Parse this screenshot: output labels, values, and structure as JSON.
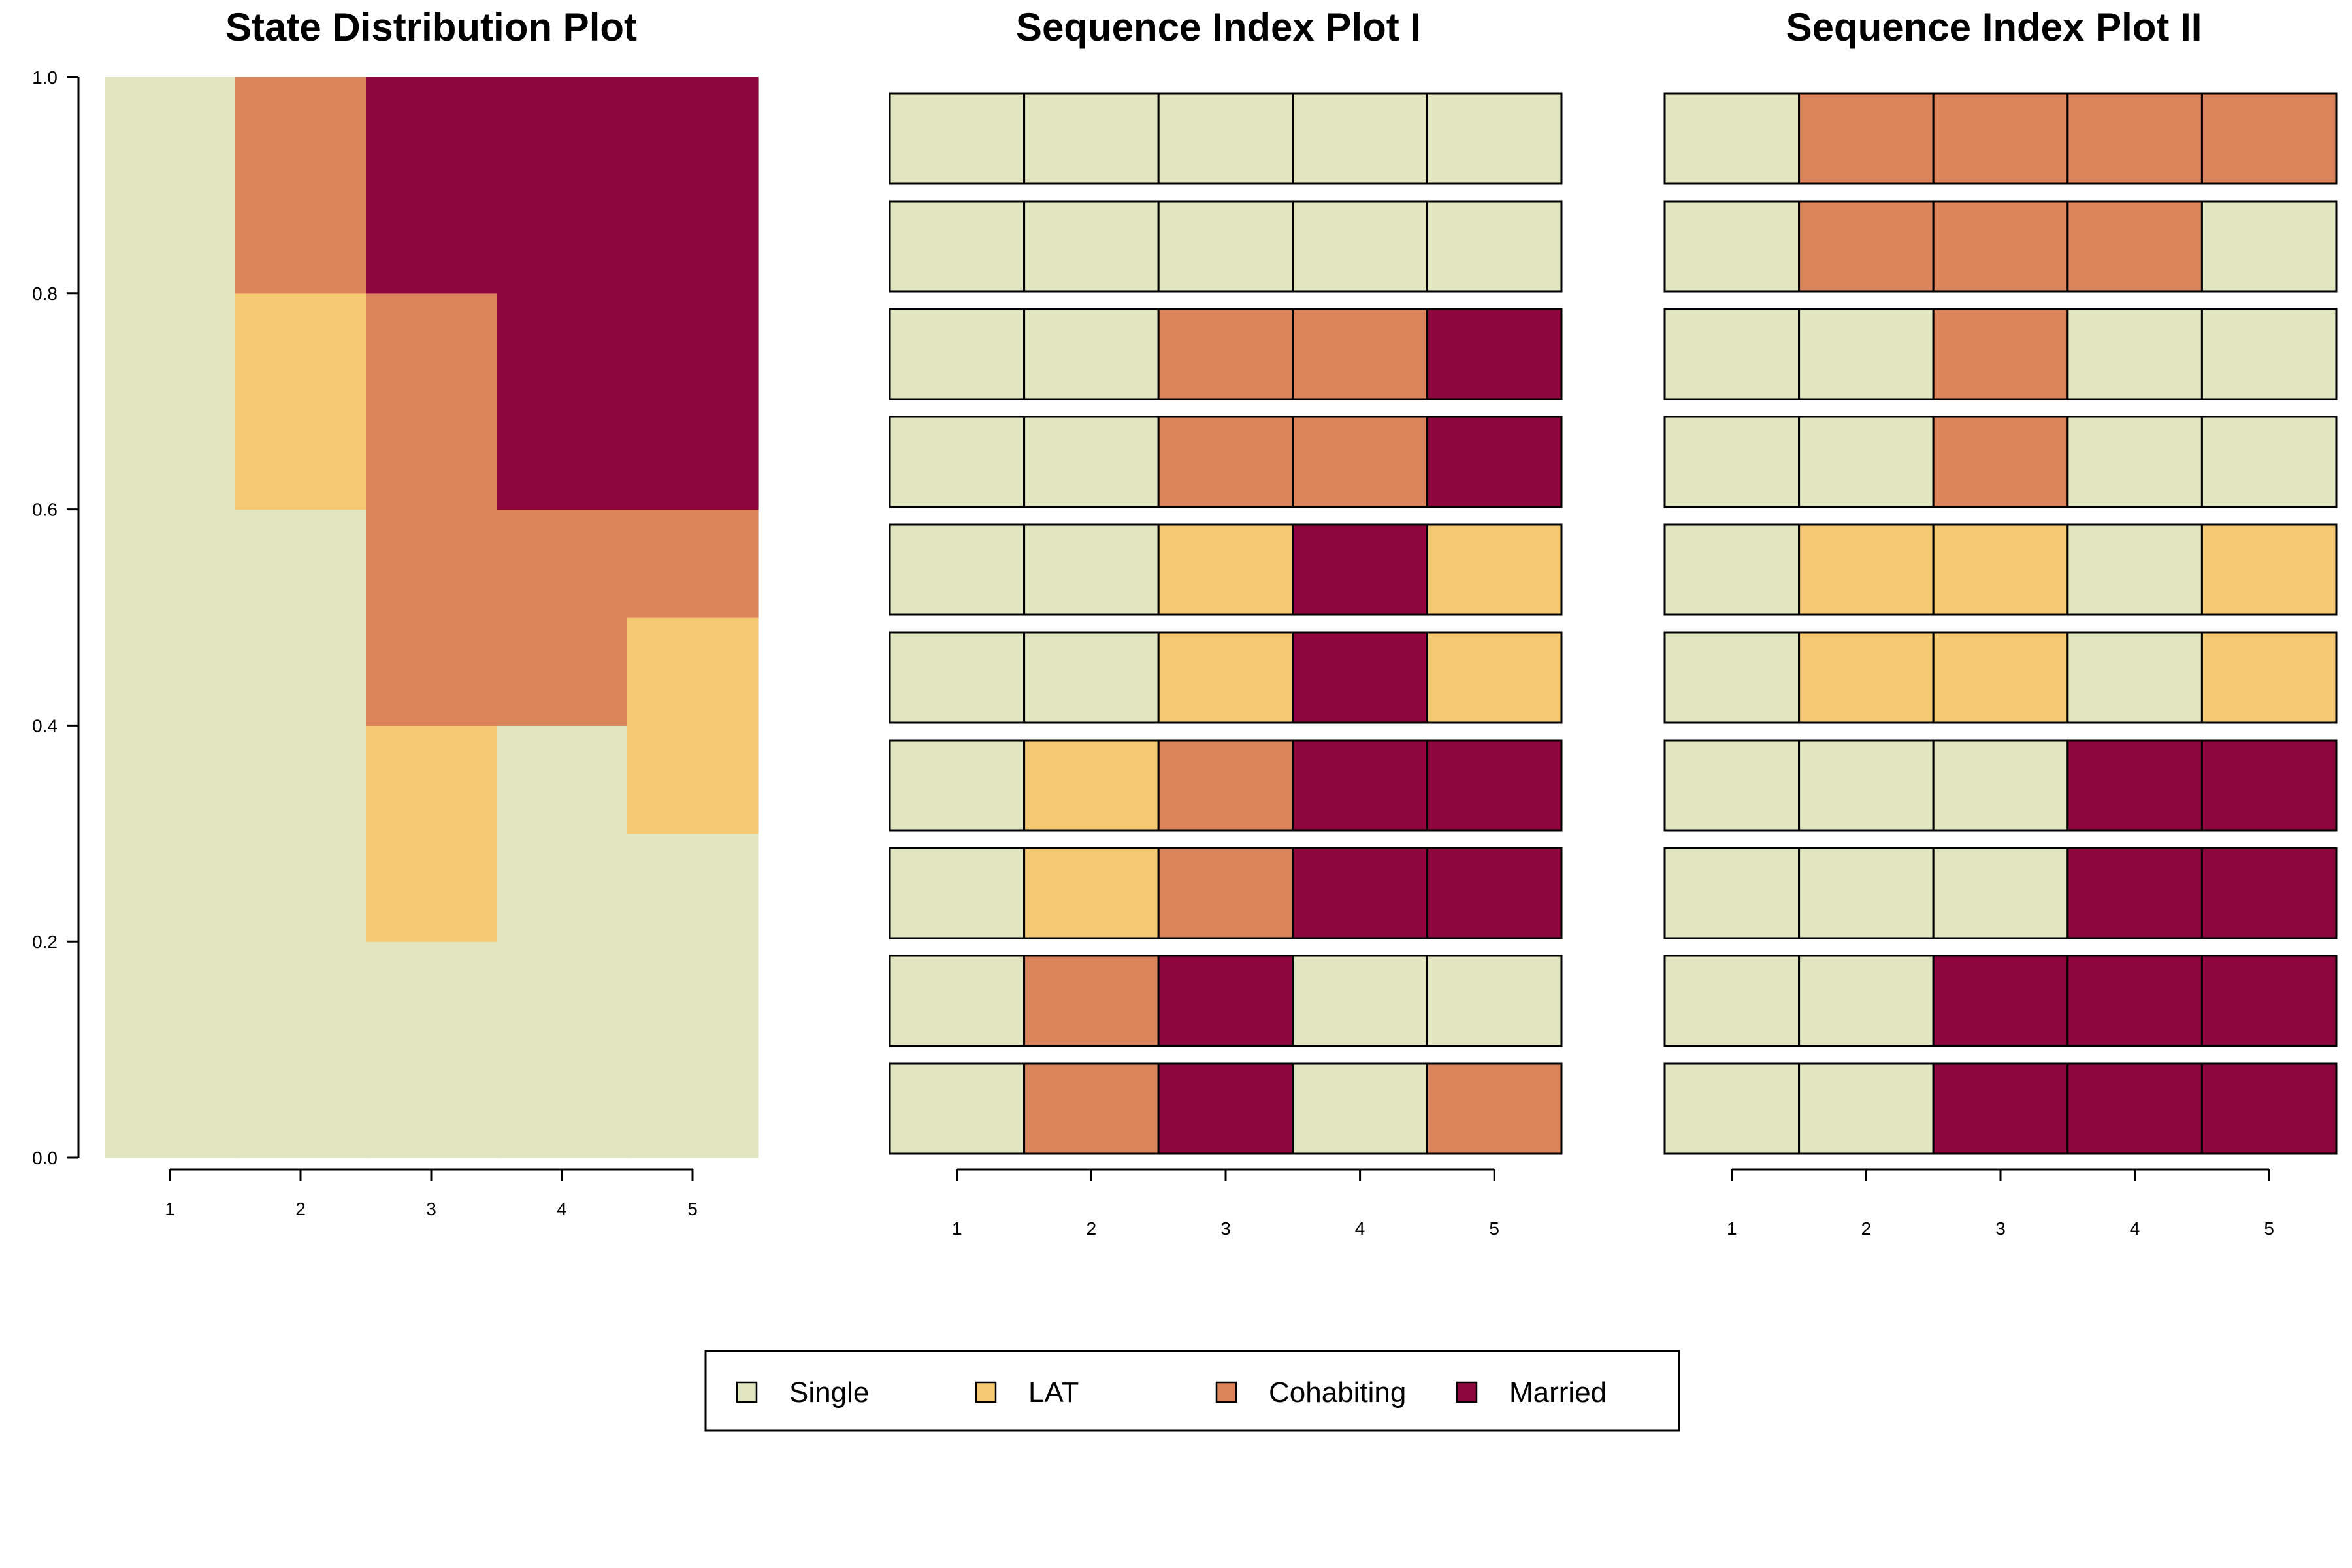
{
  "colors": {
    "Single": "#e1e6c0",
    "LAT": "#f5c872",
    "Cohabiting": "#db845b",
    "Married": "#8e063d"
  },
  "legend": {
    "items": [
      "Single",
      "LAT",
      "Cohabiting",
      "Married"
    ],
    "placement": "bottom-center"
  },
  "chart_data": [
    {
      "type": "stacked-bar",
      "title": "State Distribution Plot",
      "categories": [
        "1",
        "2",
        "3",
        "4",
        "5"
      ],
      "ylim": [
        0,
        1
      ],
      "yticks": [
        "0.0",
        "0.2",
        "0.4",
        "0.6",
        "0.8",
        "1.0"
      ],
      "series": [
        {
          "name": "Single",
          "values": [
            1.0,
            0.6,
            0.2,
            0.4,
            0.3
          ]
        },
        {
          "name": "LAT",
          "values": [
            0.0,
            0.2,
            0.2,
            0.0,
            0.2
          ]
        },
        {
          "name": "Cohabiting",
          "values": [
            0.0,
            0.2,
            0.4,
            0.2,
            0.1
          ]
        },
        {
          "name": "Married",
          "values": [
            0.0,
            0.0,
            0.2,
            0.4,
            0.4
          ]
        }
      ]
    },
    {
      "type": "sequence-index",
      "title": "Sequence Index Plot I",
      "categories": [
        "1",
        "2",
        "3",
        "4",
        "5"
      ],
      "sequences": [
        [
          "Single",
          "Single",
          "Single",
          "Single",
          "Single"
        ],
        [
          "Single",
          "Single",
          "Single",
          "Single",
          "Single"
        ],
        [
          "Single",
          "Single",
          "Cohabiting",
          "Cohabiting",
          "Married"
        ],
        [
          "Single",
          "Single",
          "Cohabiting",
          "Cohabiting",
          "Married"
        ],
        [
          "Single",
          "Single",
          "LAT",
          "Married",
          "LAT"
        ],
        [
          "Single",
          "Single",
          "LAT",
          "Married",
          "LAT"
        ],
        [
          "Single",
          "LAT",
          "Cohabiting",
          "Married",
          "Married"
        ],
        [
          "Single",
          "LAT",
          "Cohabiting",
          "Married",
          "Married"
        ],
        [
          "Single",
          "Cohabiting",
          "Married",
          "Single",
          "Single"
        ],
        [
          "Single",
          "Cohabiting",
          "Married",
          "Single",
          "Cohabiting"
        ]
      ]
    },
    {
      "type": "sequence-index",
      "title": "Sequence Index Plot II",
      "categories": [
        "1",
        "2",
        "3",
        "4",
        "5"
      ],
      "sequences": [
        [
          "Single",
          "Cohabiting",
          "Cohabiting",
          "Cohabiting",
          "Cohabiting"
        ],
        [
          "Single",
          "Cohabiting",
          "Cohabiting",
          "Cohabiting",
          "Single"
        ],
        [
          "Single",
          "Single",
          "Cohabiting",
          "Single",
          "Single"
        ],
        [
          "Single",
          "Single",
          "Cohabiting",
          "Single",
          "Single"
        ],
        [
          "Single",
          "LAT",
          "LAT",
          "Single",
          "LAT"
        ],
        [
          "Single",
          "LAT",
          "LAT",
          "Single",
          "LAT"
        ],
        [
          "Single",
          "Single",
          "Single",
          "Married",
          "Married"
        ],
        [
          "Single",
          "Single",
          "Single",
          "Married",
          "Married"
        ],
        [
          "Single",
          "Single",
          "Married",
          "Married",
          "Married"
        ],
        [
          "Single",
          "Single",
          "Married",
          "Married",
          "Married"
        ]
      ]
    }
  ]
}
